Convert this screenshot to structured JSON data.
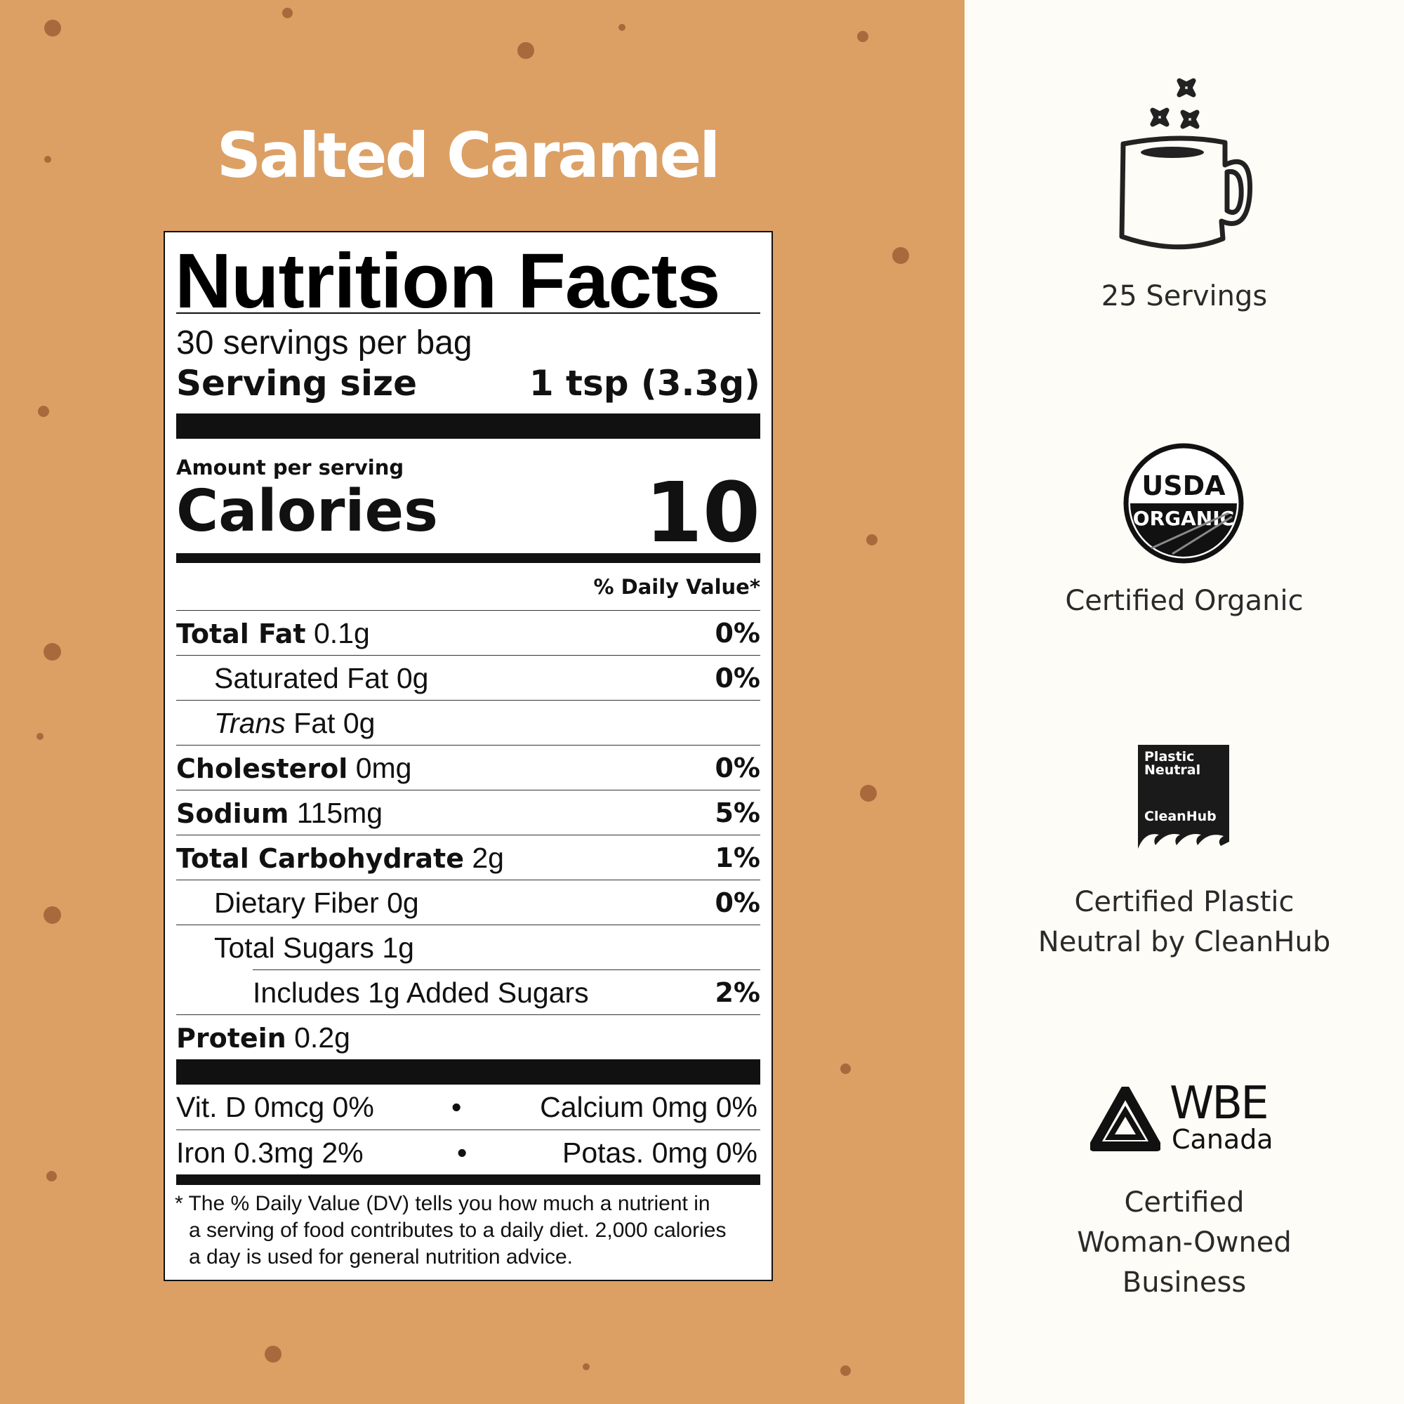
{
  "product": {
    "title": "Salted Caramel"
  },
  "colors": {
    "left_bg": "#dca065",
    "right_bg": "#fdfcf6",
    "dots": "#a9693d"
  },
  "label": {
    "heading": "Nutrition Facts",
    "servings_per": "30 servings per bag",
    "serving_size_label": "Serving size",
    "serving_size_value": "1 tsp (3.3g)",
    "amount_per": "Amount per serving",
    "calories_label": "Calories",
    "calories_value": "10",
    "dv_header": "% Daily Value*",
    "rows": [
      {
        "name": "Total Fat",
        "amount": "0.1g",
        "dv": "0%"
      },
      {
        "name": "Saturated Fat",
        "amount": "0g",
        "dv": "0%"
      },
      {
        "name_italic": "Trans",
        "name": "Fat",
        "amount": "0g"
      },
      {
        "name": "Cholesterol",
        "amount": "0mg",
        "dv": "0%"
      },
      {
        "name": "Sodium",
        "amount": "115mg",
        "dv": "5%"
      },
      {
        "name": "Total Carbohydrate",
        "amount": "2g",
        "dv": "1%"
      },
      {
        "name": "Dietary Fiber",
        "amount": "0g",
        "dv": "0%"
      },
      {
        "name": "Total Sugars",
        "amount": "1g"
      },
      {
        "name": "Includes 1g Added Sugars",
        "dv": "2%"
      },
      {
        "name": "Protein",
        "amount": "0.2g"
      }
    ],
    "vitamins": [
      {
        "left": "Vit. D 0mcg 0%",
        "right": "Calcium 0mg 0%"
      },
      {
        "left": "Iron 0.3mg 2%",
        "right": "Potas. 0mg 0%"
      }
    ],
    "bullet": "•",
    "footnote": [
      "* The % Daily Value (DV) tells you how much a nutrient in",
      "a serving of food contributes to a daily diet. 2,000 calories",
      "a day is used for general nutrition advice."
    ]
  },
  "badges": [
    {
      "icon": "mug-icon",
      "text": [
        "25 Servings"
      ]
    },
    {
      "icon": "usda-organic-seal",
      "logo_text": [
        "USDA",
        "ORGANIC"
      ],
      "text": [
        "Certified Organic"
      ]
    },
    {
      "icon": "plastic-neutral-logo",
      "logo_text": [
        "Plastic",
        "Neutral",
        "CleanHub"
      ],
      "text": [
        "Certified Plastic",
        "Neutral by CleanHub"
      ]
    },
    {
      "icon": "wbe-canada-logo",
      "logo_text": [
        "WBE",
        "Canada"
      ],
      "text": [
        "Certified",
        "Woman-Owned",
        "Business"
      ]
    }
  ]
}
